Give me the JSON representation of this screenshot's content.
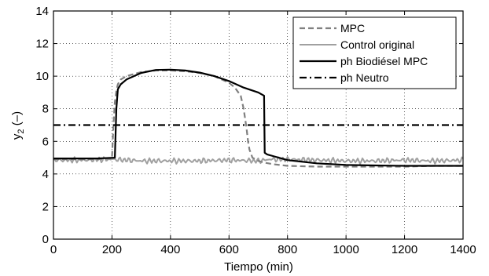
{
  "chart_data": {
    "type": "line",
    "xlabel": "Tiempo (min)",
    "ylabel_main": "y",
    "ylabel_sub": "2",
    "ylabel_suffix": " (–)",
    "xlim": [
      0,
      1400
    ],
    "ylim": [
      0,
      14
    ],
    "xticks": [
      0,
      200,
      400,
      600,
      800,
      1000,
      1200,
      1400
    ],
    "yticks": [
      0,
      2,
      4,
      6,
      8,
      10,
      12,
      14
    ],
    "grid": true,
    "legend_position": "top-right",
    "series": [
      {
        "name": "MPC",
        "style": "dashed",
        "color": "#808080",
        "x": [
          0,
          150,
          200,
          205,
          210,
          215,
          220,
          230,
          250,
          300,
          350,
          400,
          450,
          500,
          550,
          600,
          620,
          640,
          650,
          660,
          665,
          670,
          680,
          700,
          720,
          750,
          800,
          900,
          1000,
          1100,
          1200,
          1300,
          1400
        ],
        "y": [
          4.9,
          4.9,
          4.95,
          7.0,
          8.4,
          9.1,
          9.5,
          9.8,
          10.0,
          10.25,
          10.35,
          10.35,
          10.3,
          10.2,
          10.0,
          9.6,
          9.3,
          8.8,
          8.0,
          6.8,
          6.0,
          5.5,
          5.0,
          4.8,
          4.7,
          4.6,
          4.5,
          4.45,
          4.45,
          4.45,
          4.45,
          4.5,
          4.5
        ]
      },
      {
        "name": "Control original",
        "style": "solid-noisy",
        "color": "#a0a0a0",
        "x": [
          0,
          100,
          200,
          250,
          300,
          400,
          500,
          600,
          700,
          720,
          740,
          800,
          900,
          1000,
          1100,
          1200,
          1300,
          1400
        ],
        "y": [
          4.85,
          4.85,
          4.9,
          4.85,
          4.8,
          4.8,
          4.8,
          4.85,
          4.8,
          4.85,
          4.9,
          4.9,
          4.85,
          4.8,
          4.8,
          4.85,
          4.8,
          4.85
        ]
      },
      {
        "name": "ph Biodiésel MPC",
        "style": "solid",
        "color": "#000000",
        "x": [
          0,
          150,
          210,
          215,
          220,
          230,
          250,
          300,
          350,
          400,
          450,
          500,
          550,
          600,
          650,
          700,
          720,
          722,
          730,
          750,
          800,
          900,
          1000,
          1100,
          1200,
          1300,
          1400
        ],
        "y": [
          4.95,
          4.95,
          5.0,
          8.0,
          9.2,
          9.5,
          9.8,
          10.2,
          10.38,
          10.4,
          10.35,
          10.22,
          10.0,
          9.7,
          9.3,
          9.0,
          8.8,
          5.3,
          5.2,
          5.1,
          4.85,
          4.65,
          4.55,
          4.52,
          4.5,
          4.5,
          4.5
        ]
      },
      {
        "name": "ph Neutro",
        "style": "dashdot",
        "color": "#000000",
        "x": [
          0,
          1400
        ],
        "y": [
          7.0,
          7.0
        ]
      }
    ]
  }
}
